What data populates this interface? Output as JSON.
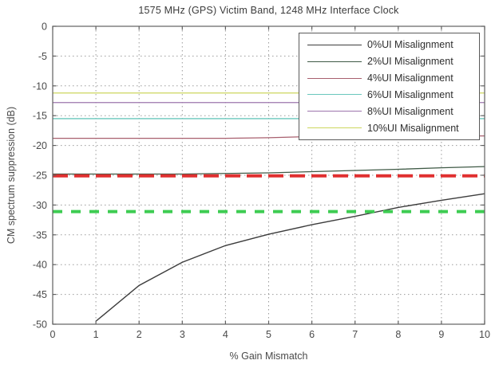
{
  "figure": {
    "title": "1575 MHz (GPS) Victim Band, 1248 MHz Interface Clock",
    "xlabel": "% Gain Mismatch",
    "ylabel": "CM spectrum suppression (dB)"
  },
  "colors": {
    "axis_frame": "#606060",
    "gridline": "#9b9b9b",
    "tick_label": "#4a4a4a",
    "threshold_red": "#e03030",
    "threshold_green": "#3ecc52"
  },
  "chart_data": {
    "type": "line",
    "title": "1575 MHz (GPS) Victim Band, 1248 MHz Interface Clock",
    "xlabel": "% Gain Mismatch",
    "ylabel": "CM spectrum suppression (dB)",
    "xlim": [
      0,
      10
    ],
    "ylim": [
      -50,
      0
    ],
    "xticks": [
      0,
      1,
      2,
      3,
      4,
      5,
      6,
      7,
      8,
      9,
      10
    ],
    "yticks": [
      0,
      -5,
      -10,
      -15,
      -20,
      -25,
      -30,
      -35,
      -40,
      -45,
      -50
    ],
    "grid": true,
    "grid_style": "dotted",
    "legend_position": "top-right",
    "series": [
      {
        "name": "0%UI Misalignment",
        "color": "#3c3c3c",
        "linestyle": "solid",
        "width": 1.4,
        "in_legend": true,
        "x": [
          1,
          2,
          3,
          4,
          5,
          6,
          7,
          8,
          9,
          10
        ],
        "y": [
          -49.5,
          -43.5,
          -39.6,
          -36.8,
          -34.9,
          -33.3,
          -31.9,
          -30.4,
          -29.2,
          -28.1
        ]
      },
      {
        "name": "2%UI Misalignment",
        "color": "#3f5a46",
        "linestyle": "solid",
        "width": 1.3,
        "in_legend": true,
        "x": [
          0,
          1,
          2,
          3,
          4,
          5,
          6,
          7,
          8,
          9,
          10
        ],
        "y": [
          -24.8,
          -24.8,
          -24.8,
          -24.8,
          -24.7,
          -24.6,
          -24.4,
          -24.2,
          -24.0,
          -23.75,
          -23.55
        ]
      },
      {
        "name": "4%UI Misalignment",
        "color": "#a85f6e",
        "linestyle": "solid",
        "width": 1.3,
        "in_legend": true,
        "x": [
          0,
          1,
          2,
          3,
          4,
          5,
          6,
          7,
          8,
          9,
          10
        ],
        "y": [
          -18.8,
          -18.8,
          -18.8,
          -18.8,
          -18.8,
          -18.7,
          -18.5,
          -18.45,
          -18.45,
          -18.4,
          -18.4
        ]
      },
      {
        "name": "6%UI Misalignment",
        "color": "#69c7bc",
        "linestyle": "solid",
        "width": 1.3,
        "in_legend": true,
        "x": [
          0,
          10
        ],
        "y": [
          -15.5,
          -15.5
        ]
      },
      {
        "name": "8%UI Misalignment",
        "color": "#9c74ad",
        "linestyle": "solid",
        "width": 1.3,
        "in_legend": true,
        "x": [
          0,
          10
        ],
        "y": [
          -12.8,
          -12.8
        ]
      },
      {
        "name": "10%UI Misalignment",
        "color": "#ccd65e",
        "linestyle": "solid",
        "width": 1.3,
        "in_legend": true,
        "x": [
          0,
          10
        ],
        "y": [
          -11.2,
          -11.2
        ]
      },
      {
        "name": "red-threshold",
        "color": "#e03030",
        "linestyle": "dashed-long",
        "width": 4,
        "in_legend": false,
        "x": [
          0,
          10
        ],
        "y": [
          -25.1,
          -25.1
        ]
      },
      {
        "name": "green-threshold",
        "color": "#3ecc52",
        "linestyle": "dashed",
        "width": 4,
        "in_legend": false,
        "x": [
          0,
          10
        ],
        "y": [
          -31.1,
          -31.1
        ]
      }
    ]
  }
}
